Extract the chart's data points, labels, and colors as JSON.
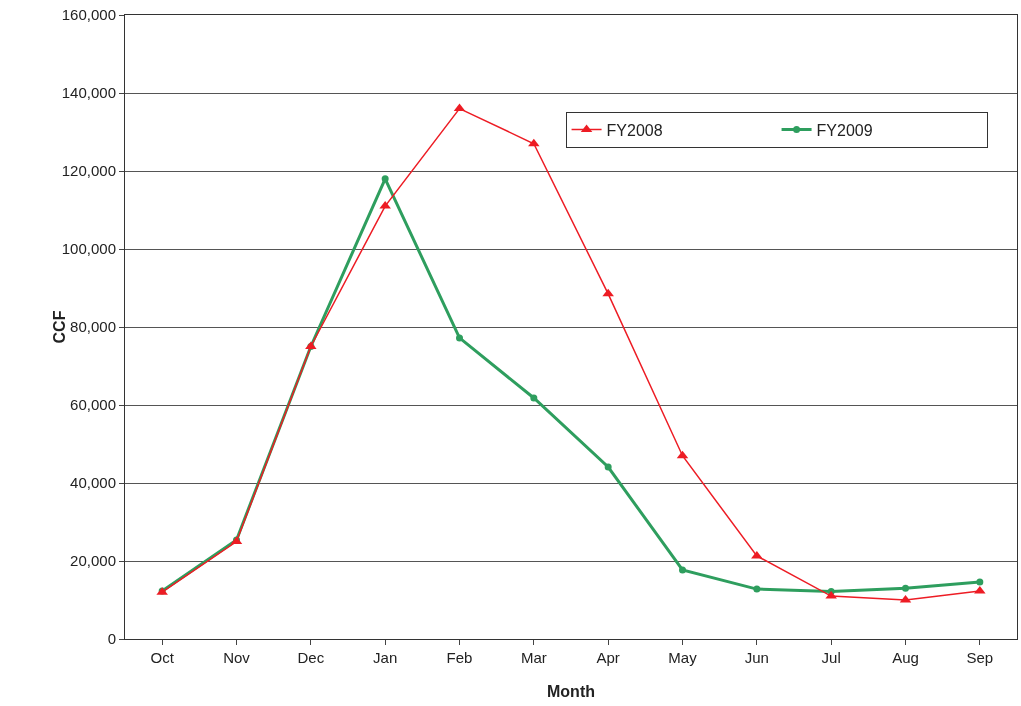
{
  "chart_data": {
    "type": "line",
    "xlabel": "Month",
    "ylabel": "CCF",
    "categories": [
      "Oct",
      "Nov",
      "Dec",
      "Jan",
      "Feb",
      "Mar",
      "Apr",
      "May",
      "Jun",
      "Jul",
      "Aug",
      "Sep"
    ],
    "series": [
      {
        "name": "FY2008",
        "color": "#ed1c24",
        "marker": "triangle",
        "values": [
          12000,
          25000,
          75000,
          111000,
          136000,
          127000,
          88500,
          47000,
          21300,
          11000,
          10000,
          12300
        ]
      },
      {
        "name": "FY2009",
        "color": "#2e9e5e",
        "marker": "circle",
        "values": [
          12300,
          25400,
          75000,
          118000,
          77200,
          61800,
          44100,
          17700,
          12800,
          12200,
          13000,
          14600
        ]
      }
    ],
    "ylim": [
      0,
      160000
    ],
    "yticks": [
      {
        "value": 0,
        "label": "0"
      },
      {
        "value": 20000,
        "label": "20,000"
      },
      {
        "value": 40000,
        "label": "40,000"
      },
      {
        "value": 60000,
        "label": "60,000"
      },
      {
        "value": 80000,
        "label": "80,000"
      },
      {
        "value": 100000,
        "label": "100,000"
      },
      {
        "value": 120000,
        "label": "120,000"
      },
      {
        "value": 140000,
        "label": "140,000"
      },
      {
        "value": 160000,
        "label": "160,000"
      }
    ],
    "grid": "y",
    "legend": "top right"
  }
}
